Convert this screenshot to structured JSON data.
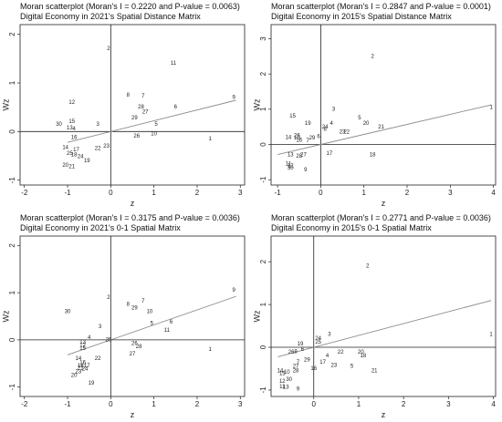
{
  "chart_data": [
    {
      "type": "scatter",
      "title": "Moran scatterplot (Moran's I = 0.2220 and P-value = 0.0063)",
      "subtitle": "Digital Economy in 2021's Spatial Distance Matrix",
      "xlabel": "z",
      "ylabel": "Wz",
      "xlim": [
        -2.1,
        3.1
      ],
      "ylim": [
        -1.1,
        2.2
      ],
      "xticks": [
        -2,
        -1,
        0,
        1,
        2,
        3
      ],
      "yticks": [
        -1,
        0,
        1,
        2
      ],
      "fit": {
        "slope": 0.222,
        "intercept": 0,
        "x": [
          -1,
          2.9
        ]
      },
      "points": [
        {
          "label": "2",
          "x": -0.05,
          "y": 1.7
        },
        {
          "label": "11",
          "x": 1.45,
          "y": 1.4
        },
        {
          "label": "9",
          "x": 2.85,
          "y": 0.7
        },
        {
          "label": "8",
          "x": 0.4,
          "y": 0.75
        },
        {
          "label": "7",
          "x": 0.75,
          "y": 0.73
        },
        {
          "label": "12",
          "x": -0.9,
          "y": 0.6
        },
        {
          "label": "28",
          "x": 0.7,
          "y": 0.5
        },
        {
          "label": "27",
          "x": 0.8,
          "y": 0.4
        },
        {
          "label": "6",
          "x": 1.5,
          "y": 0.5
        },
        {
          "label": "29",
          "x": 0.55,
          "y": 0.28
        },
        {
          "label": "5",
          "x": 1.05,
          "y": 0.15
        },
        {
          "label": "30",
          "x": -1.2,
          "y": 0.15
        },
        {
          "label": "15",
          "x": -0.9,
          "y": 0.2
        },
        {
          "label": "13",
          "x": -0.95,
          "y": 0.07
        },
        {
          "label": "4",
          "x": -0.85,
          "y": 0.05
        },
        {
          "label": "3",
          "x": -0.3,
          "y": 0.15
        },
        {
          "label": "10",
          "x": 1.0,
          "y": -0.05
        },
        {
          "label": "26",
          "x": 0.6,
          "y": -0.1
        },
        {
          "label": "1",
          "x": 2.3,
          "y": -0.15
        },
        {
          "label": "16",
          "x": -0.85,
          "y": -0.12
        },
        {
          "label": "23",
          "x": -0.1,
          "y": -0.3
        },
        {
          "label": "22",
          "x": -0.3,
          "y": -0.35
        },
        {
          "label": "14",
          "x": -1.05,
          "y": -0.33
        },
        {
          "label": "17",
          "x": -0.8,
          "y": -0.38
        },
        {
          "label": "25",
          "x": -0.95,
          "y": -0.45
        },
        {
          "label": "18",
          "x": -0.85,
          "y": -0.48
        },
        {
          "label": "24",
          "x": -0.7,
          "y": -0.52
        },
        {
          "label": "19",
          "x": -0.55,
          "y": -0.6
        },
        {
          "label": "20",
          "x": -1.05,
          "y": -0.7
        },
        {
          "label": "21",
          "x": -0.9,
          "y": -0.72
        }
      ]
    },
    {
      "type": "scatter",
      "title": "Moran scatterplot (Moran's I = 0.2847 and P-value = 0.0001)",
      "subtitle": "Digital Economy in 2015's Spatial Distance Matrix",
      "xlabel": "z",
      "ylabel": "Wz",
      "xlim": [
        -1.15,
        4.05
      ],
      "ylim": [
        -1.15,
        3.4
      ],
      "xticks": [
        -1,
        0,
        1,
        2,
        3,
        4
      ],
      "yticks": [
        -1,
        0,
        1,
        2,
        3
      ],
      "fit": {
        "slope": 0.2847,
        "intercept": 0,
        "x": [
          -1,
          3.95
        ]
      },
      "points": [
        {
          "label": "2",
          "x": 1.2,
          "y": 2.5
        },
        {
          "label": "1",
          "x": 3.95,
          "y": 1.05
        },
        {
          "label": "3",
          "x": 0.3,
          "y": 1.0
        },
        {
          "label": "15",
          "x": -0.65,
          "y": 0.8
        },
        {
          "label": "5",
          "x": 0.9,
          "y": 0.75
        },
        {
          "label": "20",
          "x": 1.05,
          "y": 0.6
        },
        {
          "label": "21",
          "x": 1.4,
          "y": 0.5
        },
        {
          "label": "19",
          "x": -0.3,
          "y": 0.6
        },
        {
          "label": "4",
          "x": 0.25,
          "y": 0.6
        },
        {
          "label": "24",
          "x": 0.1,
          "y": 0.5
        },
        {
          "label": "8",
          "x": 0.1,
          "y": 0.43
        },
        {
          "label": "23",
          "x": 0.5,
          "y": 0.35
        },
        {
          "label": "22",
          "x": 0.6,
          "y": 0.35
        },
        {
          "label": "14",
          "x": -0.75,
          "y": 0.2
        },
        {
          "label": "26",
          "x": -0.55,
          "y": 0.25
        },
        {
          "label": "29",
          "x": -0.2,
          "y": 0.18
        },
        {
          "label": "6",
          "x": -0.05,
          "y": 0.22
        },
        {
          "label": "10",
          "x": -0.55,
          "y": 0.18
        },
        {
          "label": "16",
          "x": -0.5,
          "y": 0.12
        },
        {
          "label": "7",
          "x": -0.3,
          "y": 0.1
        },
        {
          "label": "17",
          "x": 0.2,
          "y": -0.25
        },
        {
          "label": "18",
          "x": 1.2,
          "y": -0.3
        },
        {
          "label": "13",
          "x": -0.7,
          "y": -0.3
        },
        {
          "label": "28",
          "x": -0.5,
          "y": -0.33
        },
        {
          "label": "27",
          "x": -0.4,
          "y": -0.3
        },
        {
          "label": "11",
          "x": -0.75,
          "y": -0.55
        },
        {
          "label": "12",
          "x": -0.7,
          "y": -0.6
        },
        {
          "label": "30",
          "x": -0.7,
          "y": -0.67
        },
        {
          "label": "9",
          "x": -0.35,
          "y": -0.72
        }
      ]
    },
    {
      "type": "scatter",
      "title": "Moran scatterplot (Moran's I = 0.3175 and P-value = 0.0036)",
      "subtitle": "Digital Economy in 2021's 0-1 Spatial Matrix",
      "xlabel": "z",
      "ylabel": "Wz",
      "xlim": [
        -2.1,
        3.1
      ],
      "ylim": [
        -1.2,
        2.2
      ],
      "xticks": [
        -2,
        -1,
        0,
        1,
        2,
        3
      ],
      "yticks": [
        -1,
        0,
        1,
        2
      ],
      "fit": {
        "slope": 0.3175,
        "intercept": 0,
        "x": [
          -1,
          2.9
        ]
      },
      "points": [
        {
          "label": "9",
          "x": 2.85,
          "y": 1.05
        },
        {
          "label": "2",
          "x": -0.05,
          "y": 0.9
        },
        {
          "label": "8",
          "x": 0.4,
          "y": 0.75
        },
        {
          "label": "7",
          "x": 0.75,
          "y": 0.82
        },
        {
          "label": "29",
          "x": 0.55,
          "y": 0.68
        },
        {
          "label": "10",
          "x": 0.9,
          "y": 0.6
        },
        {
          "label": "30",
          "x": -1.0,
          "y": 0.6
        },
        {
          "label": "5",
          "x": 0.95,
          "y": 0.35
        },
        {
          "label": "6",
          "x": 1.4,
          "y": 0.38
        },
        {
          "label": "3",
          "x": -0.25,
          "y": 0.28
        },
        {
          "label": "11",
          "x": 1.3,
          "y": 0.2
        },
        {
          "label": "4",
          "x": -0.5,
          "y": 0.05
        },
        {
          "label": "25",
          "x": -0.05,
          "y": 0.0
        },
        {
          "label": "13",
          "x": -0.65,
          "y": -0.05
        },
        {
          "label": "12",
          "x": -0.65,
          "y": -0.12
        },
        {
          "label": "15",
          "x": -0.65,
          "y": -0.18
        },
        {
          "label": "26",
          "x": 0.55,
          "y": -0.08
        },
        {
          "label": "28",
          "x": 0.65,
          "y": -0.15
        },
        {
          "label": "27",
          "x": 0.5,
          "y": -0.3
        },
        {
          "label": "1",
          "x": 2.3,
          "y": -0.2
        },
        {
          "label": "22",
          "x": -0.3,
          "y": -0.4
        },
        {
          "label": "14",
          "x": -0.75,
          "y": -0.4
        },
        {
          "label": "16",
          "x": -0.65,
          "y": -0.48
        },
        {
          "label": "18",
          "x": -0.7,
          "y": -0.55
        },
        {
          "label": "21",
          "x": -0.7,
          "y": -0.6
        },
        {
          "label": "17",
          "x": -0.55,
          "y": -0.55
        },
        {
          "label": "24",
          "x": -0.6,
          "y": -0.62
        },
        {
          "label": "23",
          "x": -0.75,
          "y": -0.68
        },
        {
          "label": "20",
          "x": -0.85,
          "y": -0.75
        },
        {
          "label": "19",
          "x": -0.45,
          "y": -0.92
        }
      ]
    },
    {
      "type": "scatter",
      "title": "Moran scatterplot (Moran's I = 0.2771 and P-value = 0.0036)",
      "subtitle": "Digital Economy in 2015's 0-1 Spatial Matrix",
      "xlabel": "z",
      "ylabel": "Wz",
      "xlim": [
        -0.95,
        4.05
      ],
      "ylim": [
        -1.15,
        2.6
      ],
      "xticks": [
        0,
        1,
        2,
        3,
        4
      ],
      "yticks": [
        -1,
        0,
        1,
        2
      ],
      "fit": {
        "slope": 0.2771,
        "intercept": 0,
        "x": [
          -0.8,
          3.95
        ]
      },
      "points": [
        {
          "label": "2",
          "x": 1.2,
          "y": 1.9
        },
        {
          "label": "1",
          "x": 3.95,
          "y": 0.3
        },
        {
          "label": "3",
          "x": 0.35,
          "y": 0.3
        },
        {
          "label": "24",
          "x": 0.1,
          "y": 0.2
        },
        {
          "label": "25",
          "x": 0.1,
          "y": 0.12
        },
        {
          "label": "19",
          "x": -0.3,
          "y": 0.08
        },
        {
          "label": "6",
          "x": -0.25,
          "y": -0.05
        },
        {
          "label": "26",
          "x": -0.5,
          "y": -0.12
        },
        {
          "label": "8",
          "x": -0.4,
          "y": -0.1
        },
        {
          "label": "22",
          "x": 0.6,
          "y": -0.12
        },
        {
          "label": "20",
          "x": 1.05,
          "y": -0.12
        },
        {
          "label": "18",
          "x": 1.1,
          "y": -0.2
        },
        {
          "label": "4",
          "x": 0.3,
          "y": -0.2
        },
        {
          "label": "7",
          "x": -0.35,
          "y": -0.35
        },
        {
          "label": "29",
          "x": -0.15,
          "y": -0.3
        },
        {
          "label": "17",
          "x": 0.2,
          "y": -0.35
        },
        {
          "label": "23",
          "x": 0.45,
          "y": -0.42
        },
        {
          "label": "5",
          "x": 0.85,
          "y": -0.45
        },
        {
          "label": "21",
          "x": 1.35,
          "y": -0.55
        },
        {
          "label": "27",
          "x": -0.4,
          "y": -0.45
        },
        {
          "label": "28",
          "x": -0.4,
          "y": -0.55
        },
        {
          "label": "16",
          "x": 0.0,
          "y": -0.5
        },
        {
          "label": "14",
          "x": -0.75,
          "y": -0.55
        },
        {
          "label": "15",
          "x": -0.7,
          "y": -0.62
        },
        {
          "label": "10",
          "x": -0.6,
          "y": -0.58
        },
        {
          "label": "30",
          "x": -0.55,
          "y": -0.75
        },
        {
          "label": "12",
          "x": -0.7,
          "y": -0.8
        },
        {
          "label": "11",
          "x": -0.7,
          "y": -0.92
        },
        {
          "label": "13",
          "x": -0.62,
          "y": -0.94
        },
        {
          "label": "9",
          "x": -0.35,
          "y": -0.98
        }
      ]
    }
  ]
}
